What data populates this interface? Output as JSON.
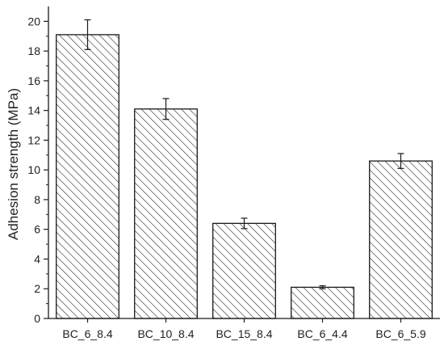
{
  "chart_data": {
    "type": "bar",
    "title": "",
    "xlabel": "",
    "ylabel": "Adhesion strength (MPa)",
    "categories": [
      "BC_6_8.4",
      "BC_10_8.4",
      "BC_15_8.4",
      "BC_6_4.4",
      "BC_6_5.9"
    ],
    "values": [
      19.1,
      14.1,
      6.4,
      2.1,
      10.6
    ],
    "error": [
      1.0,
      0.7,
      0.35,
      0.1,
      0.5
    ],
    "ylim": [
      0,
      21
    ],
    "y_ticks": [
      0,
      2,
      4,
      6,
      8,
      10,
      12,
      14,
      16,
      18,
      20
    ],
    "y_tick_labels": [
      "0",
      "2",
      "4",
      "6",
      "8",
      "10",
      "12",
      "14",
      "16",
      "18",
      "20"
    ],
    "grid": false,
    "legend": "none",
    "bar_fill": "hatched",
    "colors": {
      "bar_stroke": "#1a1a1a",
      "hatch": "#2b2b2b",
      "axis": "#1a1a1a",
      "background": "#ffffff"
    }
  }
}
